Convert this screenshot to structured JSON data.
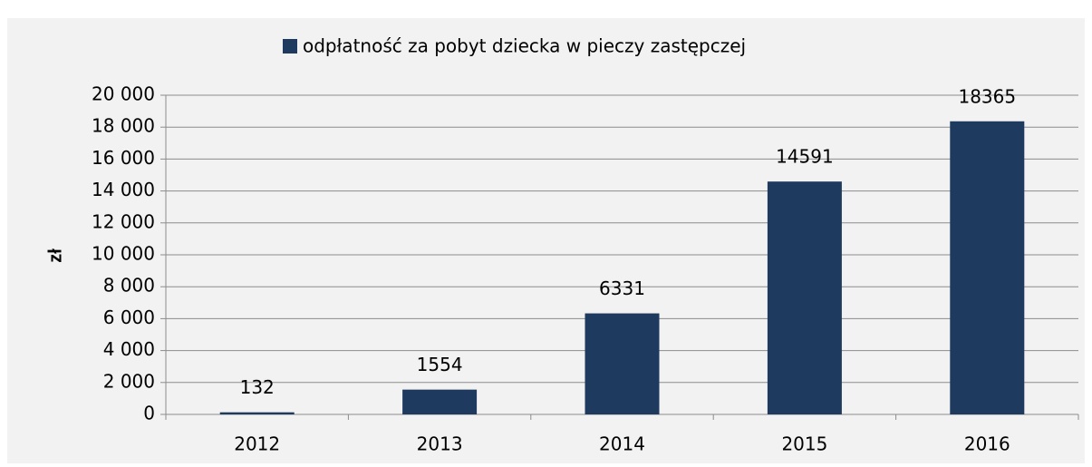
{
  "chart_data": {
    "type": "bar",
    "legend": "odpłatność za pobyt dziecka w pieczy zastępczej",
    "y_label": "zł",
    "categories": [
      "2012",
      "2013",
      "2014",
      "2015",
      "2016"
    ],
    "values": [
      132,
      1554,
      6331,
      14591,
      18365
    ],
    "color": "#1f3a5f",
    "ylim": [
      0,
      20000
    ],
    "yticks": [
      0,
      {
        "value": 2000,
        "label": "2 000"
      },
      {
        "value": 4000,
        "label": "4 000"
      },
      {
        "value": 6000,
        "label": "6 000"
      },
      {
        "value": 8000,
        "label": "8 000"
      },
      {
        "value": 10000,
        "label": "10 000"
      },
      {
        "value": 12000,
        "label": "12 000"
      },
      {
        "value": 14000,
        "label": "14 000"
      },
      {
        "value": 16000,
        "label": "16 000"
      },
      {
        "value": 18000,
        "label": "18 000"
      },
      {
        "value": 20000,
        "label": "20 000"
      }
    ],
    "grid": true,
    "legend_position": "top",
    "data_labels": true
  }
}
